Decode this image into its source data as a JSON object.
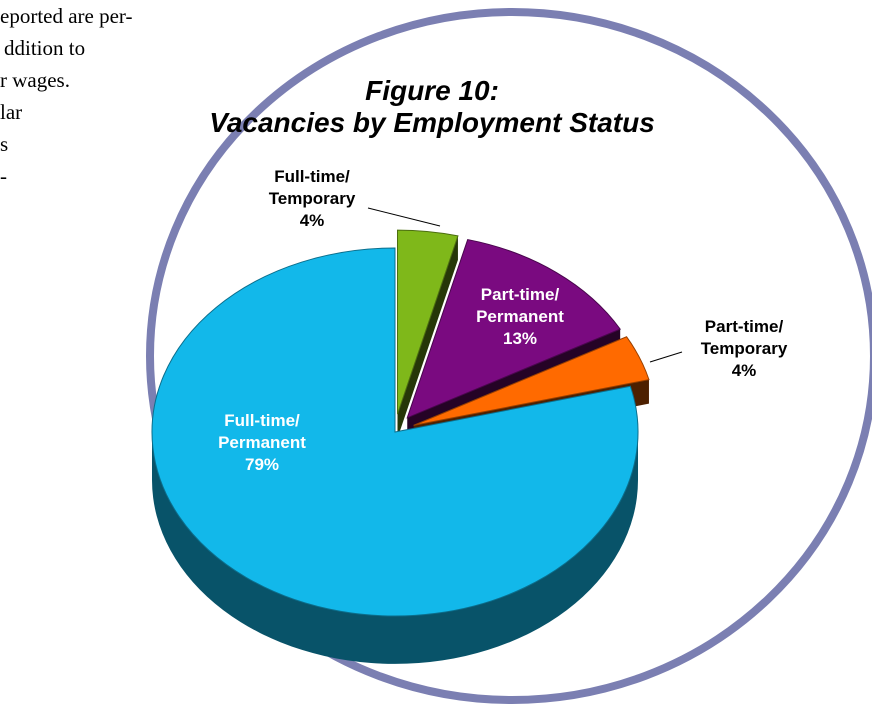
{
  "document": {
    "lines": [
      "eported are per-",
      "ddition to",
      "r wages.",
      "lar",
      "s",
      "-"
    ]
  },
  "chart_data": {
    "type": "pie3d",
    "title": "Figure 10:",
    "subtitle": "Vacancies by Employment Status",
    "categories": [
      "Full-time/ Temporary",
      "Part-time/ Permanent",
      "Part-time/ Temporary",
      "Full-time/ Permanent"
    ],
    "values": [
      4,
      13,
      4,
      79
    ],
    "value_labels": [
      "4%",
      "13%",
      "4%",
      "79%"
    ],
    "colors": [
      "#7fb81a",
      "#7a0a80",
      "#ff6a00",
      "#12b8ea"
    ]
  }
}
